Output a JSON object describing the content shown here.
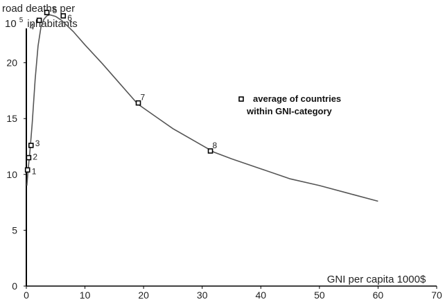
{
  "chart_data": {
    "type": "line",
    "ylabel_line1": "road deaths per",
    "ylabel_line2_base": "10",
    "ylabel_line2_exp": "5",
    "ylabel_line2_rest": "inhabitants",
    "xlabel": "GNI per capita 1000$",
    "xlim": [
      0,
      70
    ],
    "ylim": [
      0,
      25
    ],
    "xticks": [
      0,
      10,
      20,
      30,
      40,
      50,
      60,
      70
    ],
    "yticks": [
      0,
      5,
      10,
      15,
      20
    ],
    "curve": {
      "x": [
        0.1,
        0.3,
        0.6,
        1.0,
        1.5,
        2.0,
        2.5,
        3.0,
        3.5,
        4.0,
        5.0,
        6.0,
        8.0,
        10.0,
        13.0,
        16.0,
        19.0,
        22.0,
        25.0,
        30.0,
        32.0,
        35.0,
        40.0,
        45.0,
        50.0,
        55.0,
        60.0
      ],
      "y": [
        9.0,
        10.4,
        12.0,
        14.6,
        18.5,
        21.5,
        23.2,
        23.9,
        24.2,
        24.3,
        24.15,
        23.8,
        22.8,
        21.6,
        19.9,
        18.1,
        16.3,
        15.2,
        14.1,
        12.6,
        12.0,
        11.4,
        10.5,
        9.6,
        9.0,
        8.3,
        7.6
      ]
    },
    "points": [
      {
        "label": "1",
        "x": 0.2,
        "y": 10.4
      },
      {
        "label": "2",
        "x": 0.4,
        "y": 11.5
      },
      {
        "label": "3",
        "x": 0.8,
        "y": 12.6
      },
      {
        "label": "4",
        "x": 2.2,
        "y": 23.8
      },
      {
        "label": "5",
        "x": 3.5,
        "y": 24.5
      },
      {
        "label": "6",
        "x": 6.3,
        "y": 24.2
      },
      {
        "label": "7",
        "x": 19.1,
        "y": 16.4
      },
      {
        "label": "8",
        "x": 31.4,
        "y": 12.1
      }
    ],
    "legend": {
      "line1": "average of countries",
      "line2": "within GNI-category"
    },
    "colors": {
      "curve": "#555555",
      "axis": "#000000",
      "marker": "#000000"
    }
  }
}
